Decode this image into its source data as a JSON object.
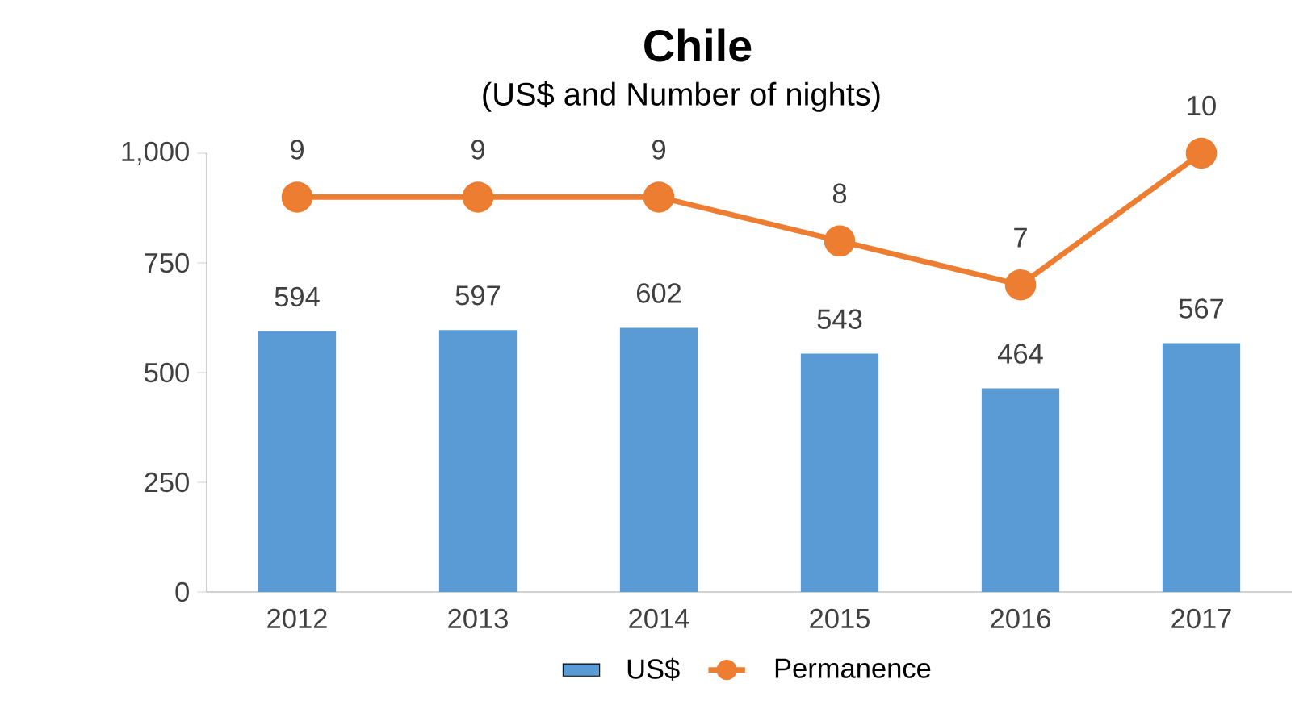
{
  "chart_data": {
    "type": "bar",
    "title": "Chile",
    "subtitle": "(US$ and Number of nights)",
    "categories": [
      "2012",
      "2013",
      "2014",
      "2015",
      "2016",
      "2017"
    ],
    "series": [
      {
        "name": "US$",
        "color": "#5b9bd5",
        "values": [
          594,
          597,
          602,
          543,
          464,
          567
        ]
      },
      {
        "name": "Permanence",
        "type": "line",
        "axis": "y2",
        "color": "#ed7d31",
        "values": [
          9,
          9,
          9,
          8,
          7,
          10
        ]
      }
    ],
    "ylim": [
      0,
      1000
    ],
    "yticks": [
      0,
      250,
      500,
      750,
      {
        "value": 1000,
        "label": "1,000"
      }
    ],
    "y2lim": [
      0,
      10
    ],
    "data_labels": true,
    "legend": "bottom",
    "marker": "circle",
    "line_style": "solid",
    "grid": false
  }
}
